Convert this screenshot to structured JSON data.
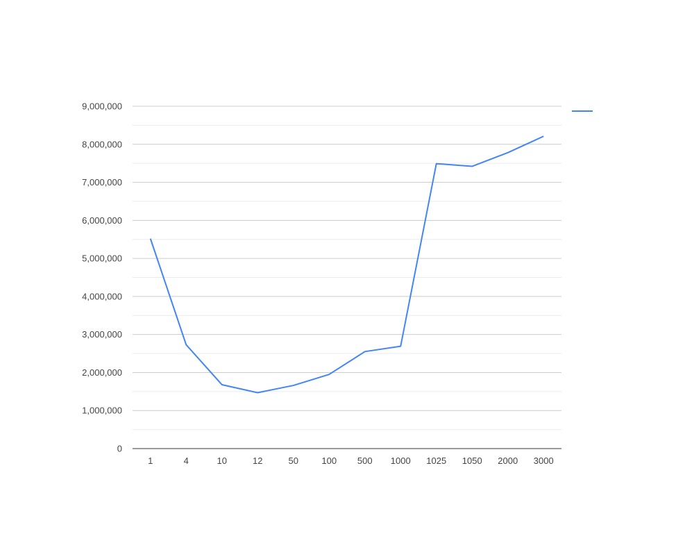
{
  "chart_data": {
    "type": "line",
    "title": "",
    "xlabel": "",
    "ylabel": "",
    "categories": [
      "1",
      "4",
      "10",
      "12",
      "50",
      "100",
      "500",
      "1000",
      "1025",
      "1050",
      "2000",
      "3000"
    ],
    "series": [
      {
        "color": "#4285f4",
        "values": [
          5520000,
          2730000,
          1680000,
          1470000,
          1660000,
          1950000,
          2550000,
          2690000,
          7490000,
          7420000,
          7780000,
          8210000
        ]
      }
    ],
    "ylim": [
      0,
      9000000
    ],
    "yticks": [
      "0",
      "1,000,000",
      "2,000,000",
      "3,000,000",
      "4,000,000",
      "5,000,000",
      "6,000,000",
      "7,000,000",
      "8,000,000",
      "9,000,000"
    ],
    "grid": true,
    "legend_position": "right"
  }
}
